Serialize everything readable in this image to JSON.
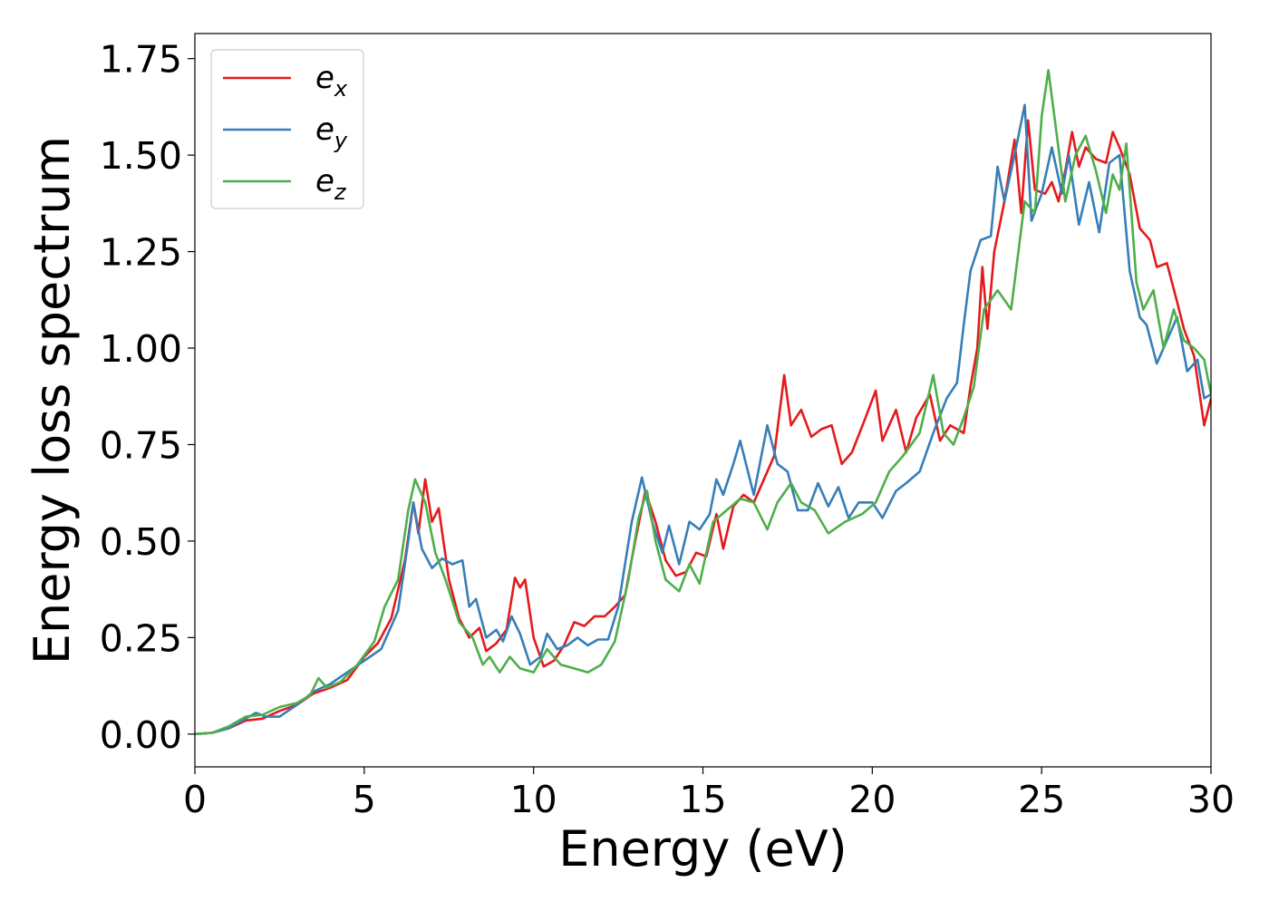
{
  "chart_data": {
    "type": "line",
    "title": "",
    "xlabel": "Energy (eV)",
    "ylabel": "Energy loss spectrum",
    "xlim": [
      0,
      30
    ],
    "ylim": [
      -0.085,
      1.815
    ],
    "xticks": [
      0,
      5,
      10,
      15,
      20,
      25,
      30
    ],
    "xtick_labels": [
      "0",
      "5",
      "10",
      "15",
      "20",
      "25",
      "30"
    ],
    "yticks": [
      0.0,
      0.25,
      0.5,
      0.75,
      1.0,
      1.25,
      1.5,
      1.75
    ],
    "ytick_labels": [
      "0.00",
      "0.25",
      "0.50",
      "0.75",
      "1.00",
      "1.25",
      "1.50",
      "1.75"
    ],
    "grid": false,
    "legend": {
      "position": "top-left"
    },
    "series": [
      {
        "name": "e_x",
        "label_base": "e",
        "label_sub": "x",
        "color": "#e41a1c",
        "points": [
          [
            0,
            0
          ],
          [
            0.5,
            0.003
          ],
          [
            1,
            0.015
          ],
          [
            1.5,
            0.035
          ],
          [
            2,
            0.04
          ],
          [
            2.5,
            0.06
          ],
          [
            3,
            0.075
          ],
          [
            3.5,
            0.105
          ],
          [
            4,
            0.12
          ],
          [
            4.5,
            0.14
          ],
          [
            5,
            0.2
          ],
          [
            5.4,
            0.235
          ],
          [
            5.8,
            0.3
          ],
          [
            6.2,
            0.45
          ],
          [
            6.45,
            0.6
          ],
          [
            6.6,
            0.52
          ],
          [
            6.8,
            0.66
          ],
          [
            7,
            0.55
          ],
          [
            7.2,
            0.585
          ],
          [
            7.5,
            0.4
          ],
          [
            7.8,
            0.3
          ],
          [
            8.1,
            0.25
          ],
          [
            8.4,
            0.275
          ],
          [
            8.6,
            0.215
          ],
          [
            8.9,
            0.235
          ],
          [
            9.2,
            0.27
          ],
          [
            9.45,
            0.405
          ],
          [
            9.6,
            0.38
          ],
          [
            9.75,
            0.4
          ],
          [
            10,
            0.25
          ],
          [
            10.3,
            0.175
          ],
          [
            10.6,
            0.19
          ],
          [
            10.9,
            0.23
          ],
          [
            11.2,
            0.29
          ],
          [
            11.5,
            0.28
          ],
          [
            11.8,
            0.305
          ],
          [
            12.1,
            0.305
          ],
          [
            12.4,
            0.33
          ],
          [
            12.7,
            0.36
          ],
          [
            13,
            0.5
          ],
          [
            13.3,
            0.63
          ],
          [
            13.6,
            0.55
          ],
          [
            13.9,
            0.45
          ],
          [
            14.2,
            0.41
          ],
          [
            14.5,
            0.42
          ],
          [
            14.8,
            0.47
          ],
          [
            15.1,
            0.46
          ],
          [
            15.4,
            0.57
          ],
          [
            15.6,
            0.48
          ],
          [
            15.9,
            0.59
          ],
          [
            16.2,
            0.62
          ],
          [
            16.5,
            0.6
          ],
          [
            16.8,
            0.66
          ],
          [
            17.1,
            0.72
          ],
          [
            17.4,
            0.93
          ],
          [
            17.6,
            0.8
          ],
          [
            17.9,
            0.84
          ],
          [
            18.2,
            0.77
          ],
          [
            18.5,
            0.79
          ],
          [
            18.8,
            0.8
          ],
          [
            19.1,
            0.7
          ],
          [
            19.4,
            0.73
          ],
          [
            19.8,
            0.82
          ],
          [
            20.1,
            0.89
          ],
          [
            20.3,
            0.76
          ],
          [
            20.7,
            0.84
          ],
          [
            21,
            0.73
          ],
          [
            21.3,
            0.82
          ],
          [
            21.7,
            0.88
          ],
          [
            22,
            0.76
          ],
          [
            22.3,
            0.8
          ],
          [
            22.7,
            0.78
          ],
          [
            22.9,
            0.9
          ],
          [
            23.1,
            1.0
          ],
          [
            23.25,
            1.21
          ],
          [
            23.4,
            1.05
          ],
          [
            23.6,
            1.25
          ],
          [
            23.9,
            1.38
          ],
          [
            24.2,
            1.54
          ],
          [
            24.4,
            1.35
          ],
          [
            24.6,
            1.59
          ],
          [
            24.8,
            1.41
          ],
          [
            25.1,
            1.4
          ],
          [
            25.3,
            1.43
          ],
          [
            25.5,
            1.38
          ],
          [
            25.7,
            1.46
          ],
          [
            25.9,
            1.56
          ],
          [
            26.1,
            1.47
          ],
          [
            26.3,
            1.52
          ],
          [
            26.6,
            1.49
          ],
          [
            26.9,
            1.48
          ],
          [
            27.1,
            1.56
          ],
          [
            27.3,
            1.52
          ],
          [
            27.6,
            1.45
          ],
          [
            27.9,
            1.31
          ],
          [
            28.2,
            1.28
          ],
          [
            28.4,
            1.21
          ],
          [
            28.7,
            1.22
          ],
          [
            29,
            1.12
          ],
          [
            29.2,
            1.05
          ],
          [
            29.5,
            0.98
          ],
          [
            29.8,
            0.8
          ],
          [
            30,
            0.87
          ]
        ]
      },
      {
        "name": "e_y",
        "label_base": "e",
        "label_sub": "y",
        "color": "#377eb8",
        "points": [
          [
            0,
            0
          ],
          [
            0.5,
            0.003
          ],
          [
            1,
            0.015
          ],
          [
            1.5,
            0.04
          ],
          [
            1.8,
            0.055
          ],
          [
            2.1,
            0.045
          ],
          [
            2.5,
            0.045
          ],
          [
            3,
            0.075
          ],
          [
            3.5,
            0.11
          ],
          [
            4,
            0.13
          ],
          [
            4.5,
            0.16
          ],
          [
            5,
            0.19
          ],
          [
            5.5,
            0.22
          ],
          [
            6,
            0.32
          ],
          [
            6.3,
            0.5
          ],
          [
            6.45,
            0.6
          ],
          [
            6.7,
            0.48
          ],
          [
            7,
            0.43
          ],
          [
            7.3,
            0.455
          ],
          [
            7.6,
            0.44
          ],
          [
            7.9,
            0.45
          ],
          [
            8.1,
            0.33
          ],
          [
            8.3,
            0.35
          ],
          [
            8.6,
            0.25
          ],
          [
            8.9,
            0.27
          ],
          [
            9.1,
            0.24
          ],
          [
            9.35,
            0.305
          ],
          [
            9.6,
            0.26
          ],
          [
            9.9,
            0.18
          ],
          [
            10.2,
            0.2
          ],
          [
            10.4,
            0.26
          ],
          [
            10.7,
            0.22
          ],
          [
            11,
            0.23
          ],
          [
            11.3,
            0.25
          ],
          [
            11.6,
            0.23
          ],
          [
            11.9,
            0.245
          ],
          [
            12.2,
            0.245
          ],
          [
            12.5,
            0.33
          ],
          [
            12.9,
            0.55
          ],
          [
            13.2,
            0.665
          ],
          [
            13.5,
            0.55
          ],
          [
            13.8,
            0.47
          ],
          [
            14,
            0.54
          ],
          [
            14.3,
            0.44
          ],
          [
            14.6,
            0.55
          ],
          [
            14.9,
            0.53
          ],
          [
            15.2,
            0.57
          ],
          [
            15.4,
            0.66
          ],
          [
            15.6,
            0.62
          ],
          [
            15.9,
            0.7
          ],
          [
            16.1,
            0.76
          ],
          [
            16.5,
            0.62
          ],
          [
            16.9,
            0.8
          ],
          [
            17.2,
            0.7
          ],
          [
            17.5,
            0.68
          ],
          [
            17.8,
            0.58
          ],
          [
            18.1,
            0.58
          ],
          [
            18.4,
            0.65
          ],
          [
            18.7,
            0.59
          ],
          [
            19,
            0.64
          ],
          [
            19.3,
            0.56
          ],
          [
            19.6,
            0.6
          ],
          [
            20,
            0.6
          ],
          [
            20.3,
            0.56
          ],
          [
            20.7,
            0.63
          ],
          [
            21,
            0.65
          ],
          [
            21.4,
            0.68
          ],
          [
            21.8,
            0.78
          ],
          [
            22.2,
            0.87
          ],
          [
            22.5,
            0.91
          ],
          [
            22.7,
            1.06
          ],
          [
            22.9,
            1.2
          ],
          [
            23.2,
            1.28
          ],
          [
            23.5,
            1.29
          ],
          [
            23.7,
            1.47
          ],
          [
            23.9,
            1.38
          ],
          [
            24.2,
            1.5
          ],
          [
            24.5,
            1.63
          ],
          [
            24.7,
            1.33
          ],
          [
            25,
            1.4
          ],
          [
            25.3,
            1.52
          ],
          [
            25.6,
            1.4
          ],
          [
            25.8,
            1.5
          ],
          [
            26.1,
            1.32
          ],
          [
            26.4,
            1.43
          ],
          [
            26.7,
            1.3
          ],
          [
            27,
            1.48
          ],
          [
            27.3,
            1.5
          ],
          [
            27.6,
            1.2
          ],
          [
            27.9,
            1.08
          ],
          [
            28.1,
            1.06
          ],
          [
            28.4,
            0.96
          ],
          [
            28.7,
            1.02
          ],
          [
            29,
            1.08
          ],
          [
            29.3,
            0.94
          ],
          [
            29.6,
            0.97
          ],
          [
            29.8,
            0.87
          ],
          [
            30,
            0.88
          ]
        ]
      },
      {
        "name": "e_z",
        "label_base": "e",
        "label_sub": "z",
        "color": "#4daf4a",
        "points": [
          [
            0,
            0
          ],
          [
            0.5,
            0.003
          ],
          [
            1,
            0.02
          ],
          [
            1.5,
            0.045
          ],
          [
            2,
            0.05
          ],
          [
            2.5,
            0.07
          ],
          [
            3,
            0.08
          ],
          [
            3.4,
            0.1
          ],
          [
            3.65,
            0.145
          ],
          [
            3.9,
            0.12
          ],
          [
            4.3,
            0.135
          ],
          [
            4.8,
            0.18
          ],
          [
            5.3,
            0.24
          ],
          [
            5.6,
            0.33
          ],
          [
            6,
            0.4
          ],
          [
            6.3,
            0.58
          ],
          [
            6.5,
            0.66
          ],
          [
            6.8,
            0.6
          ],
          [
            7.1,
            0.47
          ],
          [
            7.4,
            0.4
          ],
          [
            7.8,
            0.29
          ],
          [
            8.2,
            0.25
          ],
          [
            8.5,
            0.18
          ],
          [
            8.7,
            0.2
          ],
          [
            9,
            0.16
          ],
          [
            9.3,
            0.2
          ],
          [
            9.6,
            0.17
          ],
          [
            10,
            0.16
          ],
          [
            10.4,
            0.22
          ],
          [
            10.8,
            0.18
          ],
          [
            11.2,
            0.17
          ],
          [
            11.6,
            0.16
          ],
          [
            12,
            0.18
          ],
          [
            12.4,
            0.24
          ],
          [
            12.8,
            0.4
          ],
          [
            13.1,
            0.56
          ],
          [
            13.35,
            0.63
          ],
          [
            13.6,
            0.5
          ],
          [
            13.9,
            0.4
          ],
          [
            14.3,
            0.37
          ],
          [
            14.6,
            0.44
          ],
          [
            14.9,
            0.39
          ],
          [
            15.3,
            0.55
          ],
          [
            15.7,
            0.58
          ],
          [
            16.1,
            0.61
          ],
          [
            16.5,
            0.6
          ],
          [
            16.9,
            0.53
          ],
          [
            17.2,
            0.6
          ],
          [
            17.6,
            0.65
          ],
          [
            17.9,
            0.6
          ],
          [
            18.3,
            0.58
          ],
          [
            18.7,
            0.52
          ],
          [
            19.2,
            0.55
          ],
          [
            19.7,
            0.57
          ],
          [
            20.1,
            0.6
          ],
          [
            20.5,
            0.68
          ],
          [
            20.9,
            0.72
          ],
          [
            21.4,
            0.78
          ],
          [
            21.8,
            0.93
          ],
          [
            22.1,
            0.78
          ],
          [
            22.4,
            0.75
          ],
          [
            22.7,
            0.82
          ],
          [
            23,
            0.9
          ],
          [
            23.3,
            1.1
          ],
          [
            23.7,
            1.15
          ],
          [
            24.1,
            1.1
          ],
          [
            24.5,
            1.38
          ],
          [
            24.8,
            1.35
          ],
          [
            25,
            1.6
          ],
          [
            25.2,
            1.72
          ],
          [
            25.45,
            1.55
          ],
          [
            25.7,
            1.38
          ],
          [
            26,
            1.5
          ],
          [
            26.3,
            1.55
          ],
          [
            26.6,
            1.46
          ],
          [
            26.9,
            1.35
          ],
          [
            27.1,
            1.45
          ],
          [
            27.3,
            1.41
          ],
          [
            27.5,
            1.53
          ],
          [
            27.8,
            1.17
          ],
          [
            28,
            1.1
          ],
          [
            28.3,
            1.15
          ],
          [
            28.6,
            1.0
          ],
          [
            28.9,
            1.1
          ],
          [
            29.2,
            1.02
          ],
          [
            29.5,
            1.0
          ],
          [
            29.8,
            0.97
          ],
          [
            30,
            0.88
          ]
        ]
      }
    ]
  }
}
